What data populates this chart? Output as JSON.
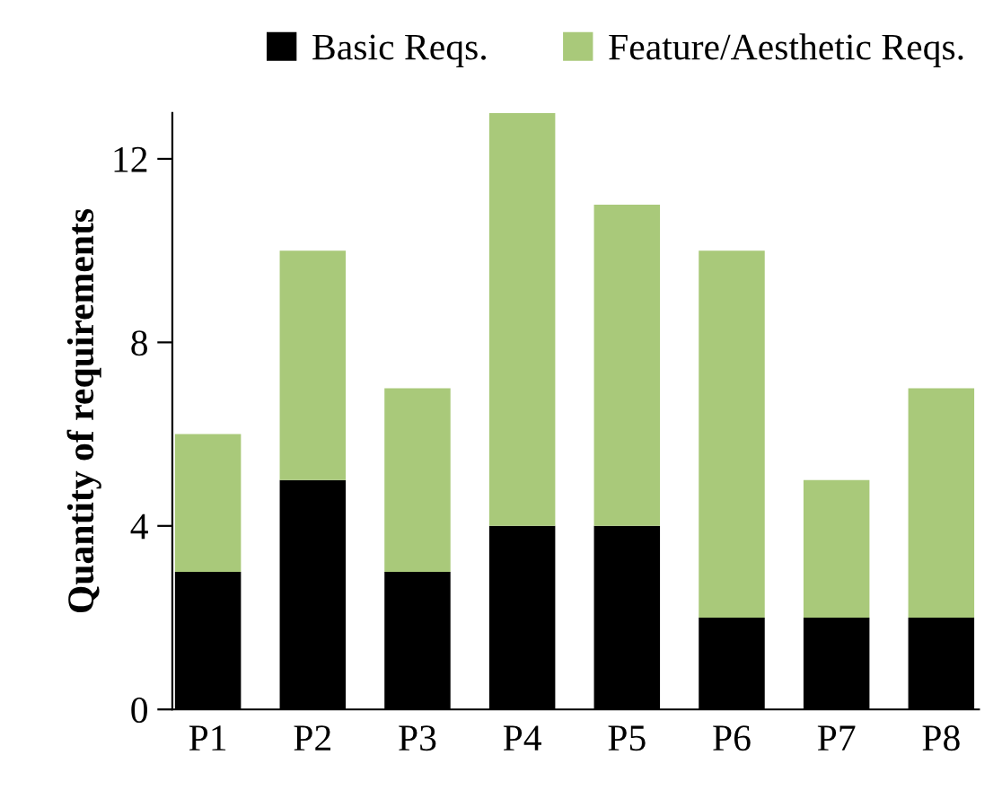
{
  "chart_data": {
    "type": "bar",
    "stacked": true,
    "ylabel": "Quantity of requirements",
    "categories": [
      "P1",
      "P2",
      "P3",
      "P4",
      "P5",
      "P6",
      "P7",
      "P8"
    ],
    "series": [
      {
        "name": "Basic Reqs.",
        "color": "#000000",
        "values": [
          3,
          5,
          3,
          4,
          4,
          2,
          2,
          2
        ]
      },
      {
        "name": "Feature/Aesthetic Reqs.",
        "color": "#a9c97a",
        "values": [
          3,
          5,
          4,
          9,
          7,
          8,
          3,
          5
        ]
      }
    ],
    "ylim": [
      0,
      13
    ],
    "yticks": [
      0,
      4,
      8,
      12
    ],
    "grid": false,
    "legend": "top"
  }
}
